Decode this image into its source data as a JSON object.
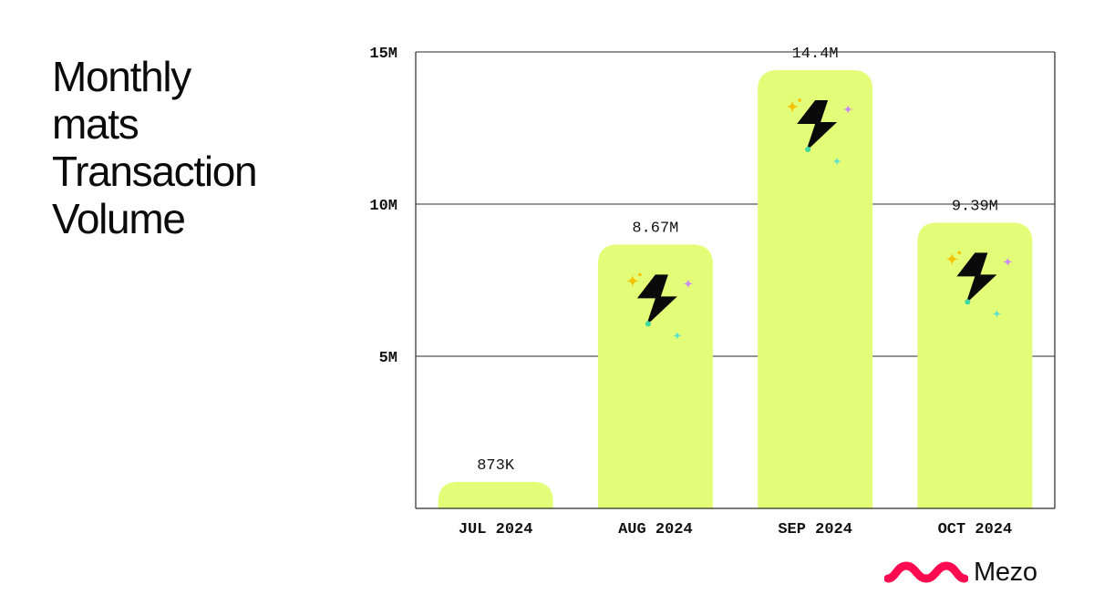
{
  "title_lines": [
    "Monthly",
    "mats",
    "Transaction",
    "Volume"
  ],
  "brand": {
    "name": "Mezo",
    "color": "#ff0a50"
  },
  "colors": {
    "bar": "#e4fd79",
    "grid": "#2a2a2a",
    "text": "#111111"
  },
  "chart_data": {
    "type": "bar",
    "categories": [
      "JUL 2024",
      "AUG 2024",
      "SEP 2024",
      "OCT 2024"
    ],
    "values": [
      873000,
      8670000,
      14400000,
      9390000
    ],
    "data_labels": [
      "873K",
      "8.67M",
      "14.4M",
      "9.39M"
    ],
    "ylim": [
      0,
      15000000
    ],
    "yticks": [
      5000000,
      10000000,
      15000000
    ],
    "ytick_labels": [
      "5M",
      "10M",
      "15M"
    ],
    "grid": true,
    "bar_icon": "lightning-bolt-sparkles-icon",
    "title": "",
    "xlabel": "",
    "ylabel": ""
  }
}
